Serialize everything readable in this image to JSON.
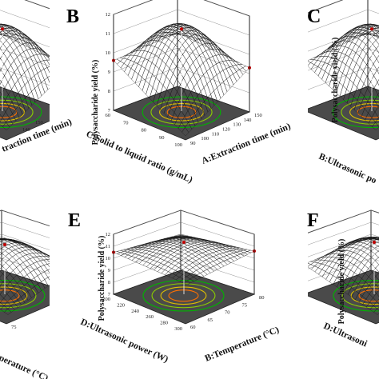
{
  "figure": {
    "colors": {
      "surface_low": "#00e000",
      "surface_mid": "#ffff00",
      "surface_high": "#d00000",
      "floor": "#4a4a4a",
      "contour_outer": "#00b400",
      "contour_inner": "#ff7000"
    }
  },
  "chart_data": [
    {
      "panel": "A",
      "type": "surface",
      "xlabel": "",
      "ylabel": "",
      "visible_text": [
        "traction time (min)",
        "150",
        "140"
      ],
      "zlim": [
        7,
        12
      ],
      "peak": 11.2
    },
    {
      "panel": "B",
      "type": "surface",
      "xlabel": "A:Extraction time (min)",
      "ylabel": "C:Solid to liquid ratio (g/mL)",
      "zlabel": "Polysaccharide yield (%)",
      "xlim": [
        90,
        150
      ],
      "ylim": [
        60,
        100
      ],
      "zlim": [
        7,
        12
      ],
      "xticks": [
        "90",
        "100",
        "110",
        "120",
        "130",
        "140",
        "150"
      ],
      "yticks": [
        "60",
        "70",
        "80",
        "90",
        "100"
      ],
      "zticks": [
        "7",
        "8",
        "9",
        "10",
        "11",
        "12"
      ],
      "peak": 11.2,
      "corners": {
        "front": 7.0,
        "right": 9.3,
        "left": 9.6,
        "back": 9.8
      }
    },
    {
      "panel": "C",
      "type": "surface",
      "xlabel": "B:Ultrasonic po",
      "zlabel": "Polysaccharide yield (%)",
      "xticks": [
        "280",
        "260"
      ],
      "zticks": [
        "8",
        "9",
        "10",
        "11",
        "12"
      ],
      "zlim": [
        7,
        12
      ],
      "peak": 11.2
    },
    {
      "panel": "D",
      "type": "surface",
      "xlabel": "perature (°C)",
      "xticks": [
        "75",
        "70"
      ],
      "zlim": [
        7,
        12
      ],
      "peak": 11.0
    },
    {
      "panel": "E",
      "type": "surface",
      "xlabel": "B:Temperature (°C)",
      "ylabel": "D:Ultrasonic power (W)",
      "zlabel": "Polysaccharide yield (%)",
      "xlim": [
        60,
        80
      ],
      "ylim": [
        200,
        300
      ],
      "zlim": [
        7,
        12
      ],
      "xticks": [
        "60",
        "65",
        "70",
        "75",
        "80"
      ],
      "yticks": [
        "200",
        "220",
        "240",
        "260",
        "280",
        "300"
      ],
      "zticks": [
        "7",
        "8",
        "9",
        "10",
        "11",
        "12"
      ],
      "peak": 11.2,
      "corners": {
        "front": 9.8,
        "right": 10.6,
        "left": 10.5,
        "back": 10.0
      }
    },
    {
      "panel": "F",
      "type": "surface",
      "xlabel": "D:Ultrasoni",
      "zlabel": "Polysaccharide yield (%)",
      "yticks": [
        "300"
      ],
      "zticks": [
        "7",
        "8",
        "9",
        "10",
        "11",
        "12"
      ],
      "zlim": [
        7,
        12
      ],
      "peak": 11.2
    }
  ]
}
